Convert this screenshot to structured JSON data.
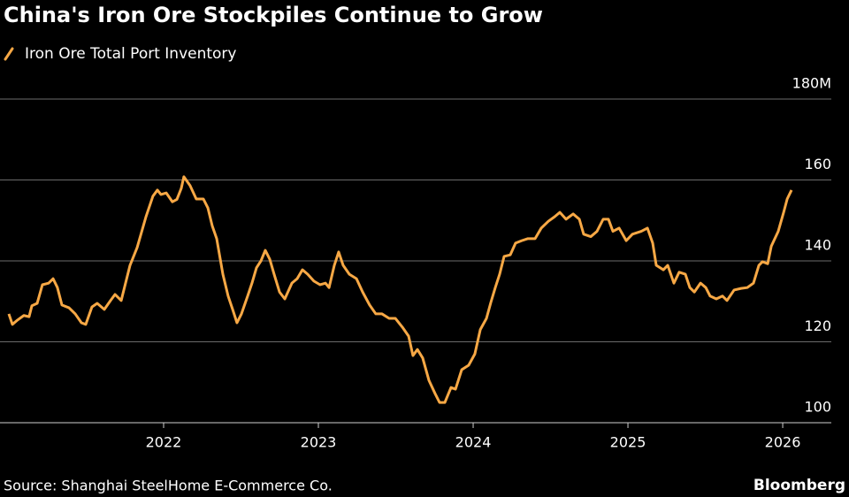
{
  "chart_data": {
    "type": "line",
    "title": "China's Iron Ore Stockpiles Continue to Grow",
    "source": "Source: Shanghai SteelHome E-Commerce Co.",
    "logo": "Bloomberg",
    "x": [
      2021.0,
      2021.023,
      2021.057,
      2021.097,
      2021.131,
      2021.149,
      2021.183,
      2021.217,
      2021.257,
      2021.286,
      2021.314,
      2021.343,
      2021.389,
      2021.429,
      2021.469,
      2021.497,
      2021.537,
      2021.571,
      2021.617,
      2021.657,
      2021.686,
      2021.726,
      2021.783,
      2021.829,
      2021.886,
      2021.931,
      2021.96,
      2021.983,
      2022.017,
      2022.057,
      2022.086,
      2022.114,
      2022.131,
      2022.171,
      2022.211,
      2022.257,
      2022.286,
      2022.314,
      2022.343,
      2022.383,
      2022.417,
      2022.446,
      2022.474,
      2022.503,
      2022.543,
      2022.571,
      2022.6,
      2022.629,
      2022.657,
      2022.686,
      2022.714,
      2022.749,
      2022.783,
      2022.829,
      2022.863,
      2022.897,
      2022.931,
      2022.971,
      2023.011,
      2023.046,
      2023.069,
      2023.103,
      2023.131,
      2023.16,
      2023.2,
      2023.246,
      2023.286,
      2023.331,
      2023.371,
      2023.411,
      2023.457,
      2023.497,
      2023.543,
      2023.583,
      2023.611,
      2023.64,
      2023.674,
      2023.714,
      2023.754,
      2023.783,
      2023.817,
      2023.857,
      2023.886,
      2023.926,
      2023.971,
      2024.011,
      2024.046,
      2024.086,
      2024.114,
      2024.143,
      2024.171,
      2024.2,
      2024.24,
      2024.274,
      2024.314,
      2024.354,
      2024.4,
      2024.44,
      2024.486,
      2024.526,
      2024.56,
      2024.6,
      2024.646,
      2024.686,
      2024.714,
      2024.76,
      2024.8,
      2024.84,
      2024.874,
      2024.903,
      2024.943,
      2024.989,
      2025.029,
      2025.086,
      2025.126,
      2025.16,
      2025.183,
      2025.229,
      2025.257,
      2025.297,
      2025.331,
      2025.371,
      2025.4,
      2025.429,
      2025.469,
      2025.503,
      2025.531,
      2025.571,
      2025.611,
      2025.64,
      2025.686,
      2025.731,
      2025.771,
      2025.811,
      2025.846,
      2025.869,
      2025.903,
      2025.926,
      2025.971,
      2026.006,
      2026.029,
      2026.057
    ],
    "series": [
      {
        "name": "Iron Ore Total Port Inventory",
        "color": "#f7a845",
        "values": [
          126.9,
          124.3,
          125.4,
          126.5,
          126.2,
          128.9,
          129.5,
          134.1,
          134.5,
          135.6,
          133.4,
          129.1,
          128.4,
          126.9,
          124.7,
          124.3,
          128.6,
          129.5,
          128.0,
          130.2,
          131.7,
          130.2,
          138.9,
          143.3,
          150.9,
          156.0,
          157.5,
          156.4,
          156.8,
          154.6,
          155.2,
          157.9,
          160.8,
          158.6,
          155.3,
          155.3,
          153.1,
          148.7,
          145.5,
          136.7,
          131.3,
          128.0,
          124.7,
          126.9,
          131.3,
          134.5,
          138.3,
          140.0,
          142.6,
          140.4,
          136.7,
          132.3,
          130.6,
          134.5,
          135.6,
          137.8,
          136.7,
          135.0,
          134.1,
          134.5,
          133.4,
          138.9,
          142.2,
          138.9,
          136.7,
          135.6,
          132.3,
          129.1,
          126.9,
          126.9,
          125.8,
          125.8,
          123.6,
          121.4,
          116.6,
          118.1,
          116.0,
          110.5,
          107.2,
          105.0,
          105.0,
          108.7,
          108.3,
          113.1,
          114.2,
          117.0,
          123.0,
          125.8,
          129.7,
          133.4,
          136.7,
          141.1,
          141.5,
          144.4,
          145.0,
          145.5,
          145.5,
          148.1,
          149.8,
          150.9,
          152.0,
          150.3,
          151.6,
          150.3,
          146.6,
          146.0,
          147.3,
          150.3,
          150.3,
          147.3,
          148.1,
          145.0,
          146.6,
          147.3,
          148.1,
          144.4,
          138.9,
          137.8,
          138.9,
          134.5,
          137.2,
          136.7,
          133.4,
          132.3,
          134.5,
          133.4,
          131.3,
          130.6,
          131.3,
          130.2,
          132.8,
          133.2,
          133.4,
          134.5,
          138.9,
          139.8,
          139.3,
          143.6,
          147.3,
          152.0,
          155.3,
          157.5
        ]
      }
    ],
    "xlim": [
      2020.943,
      2026.314
    ],
    "xticks": [
      2022,
      2023,
      2024,
      2025,
      2026
    ],
    "ylim": [
      100,
      180
    ],
    "yticks": [
      100,
      120,
      140,
      160,
      {
        "value": 180,
        "label": "180M"
      }
    ],
    "grid": true
  }
}
